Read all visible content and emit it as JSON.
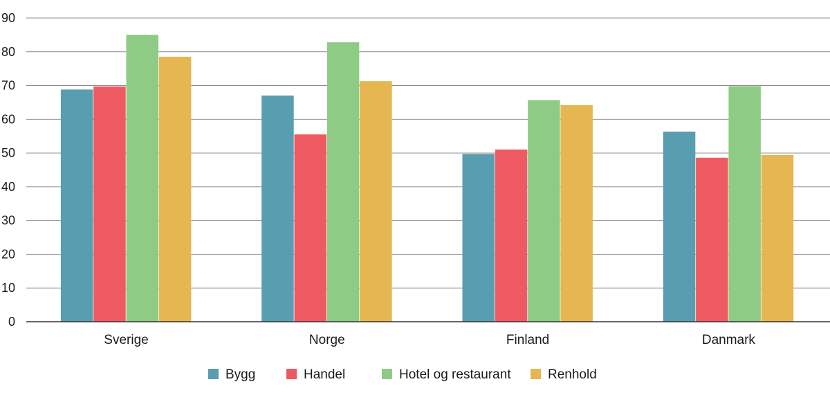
{
  "chart_data": {
    "type": "bar",
    "categories": [
      "Sverige",
      "Norge",
      "Finland",
      "Danmark"
    ],
    "series": [
      {
        "name": "Bygg",
        "color": "#589eb0",
        "values": [
          68.8,
          67.0,
          49.7,
          56.3
        ]
      },
      {
        "name": "Handel",
        "color": "#ef5a62",
        "values": [
          69.7,
          55.5,
          51.0,
          48.6
        ]
      },
      {
        "name": "Hotel og restaurant",
        "color": "#8ecb84",
        "values": [
          85.0,
          82.8,
          65.6,
          69.8
        ]
      },
      {
        "name": "Renhold",
        "color": "#e6b651",
        "values": [
          78.5,
          71.3,
          64.2,
          49.4
        ]
      }
    ],
    "ylim": [
      0,
      90
    ],
    "yticks": [
      0,
      10,
      20,
      30,
      40,
      50,
      60,
      70,
      80,
      90
    ],
    "grid": true,
    "legend_position": "bottom",
    "title": "",
    "xlabel": "",
    "ylabel": ""
  }
}
